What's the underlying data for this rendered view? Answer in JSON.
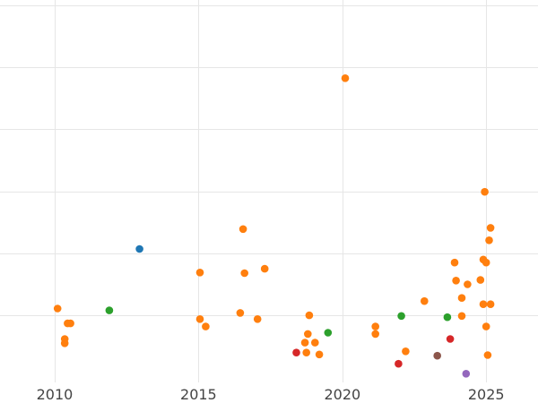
{
  "chart_data": {
    "type": "scatter",
    "title": "",
    "xlabel": "",
    "ylabel": "",
    "grid": true,
    "legend": "none",
    "x_ticks": [
      2010,
      2015,
      2020,
      2025
    ],
    "y_gridlines": [
      100,
      200,
      300,
      400,
      500,
      600
    ],
    "xlim": [
      2008.1,
      2026.8
    ],
    "ylim": [
      -8,
      608
    ],
    "series": [
      {
        "color": "#ff7f0e",
        "points": [
          {
            "x": 2010.1,
            "y": 111
          },
          {
            "x": 2010.45,
            "y": 87
          },
          {
            "x": 2010.55,
            "y": 87
          },
          {
            "x": 2010.35,
            "y": 62
          },
          {
            "x": 2010.35,
            "y": 55
          },
          {
            "x": 2015.05,
            "y": 169
          },
          {
            "x": 2015.05,
            "y": 94
          },
          {
            "x": 2015.25,
            "y": 82
          },
          {
            "x": 2016.55,
            "y": 239
          },
          {
            "x": 2016.6,
            "y": 168
          },
          {
            "x": 2016.45,
            "y": 104
          },
          {
            "x": 2017.05,
            "y": 94
          },
          {
            "x": 2017.3,
            "y": 175
          },
          {
            "x": 2018.7,
            "y": 56
          },
          {
            "x": 2018.75,
            "y": 40
          },
          {
            "x": 2018.8,
            "y": 70
          },
          {
            "x": 2018.85,
            "y": 100
          },
          {
            "x": 2019.05,
            "y": 56
          },
          {
            "x": 2019.2,
            "y": 37
          },
          {
            "x": 2020.1,
            "y": 482
          },
          {
            "x": 2021.15,
            "y": 82
          },
          {
            "x": 2021.15,
            "y": 70
          },
          {
            "x": 2022.2,
            "y": 42
          },
          {
            "x": 2022.85,
            "y": 123
          },
          {
            "x": 2023.9,
            "y": 185
          },
          {
            "x": 2023.95,
            "y": 156
          },
          {
            "x": 2024.15,
            "y": 128
          },
          {
            "x": 2024.35,
            "y": 150
          },
          {
            "x": 2024.15,
            "y": 99
          },
          {
            "x": 2024.8,
            "y": 157
          },
          {
            "x": 2024.9,
            "y": 190
          },
          {
            "x": 2025.0,
            "y": 185
          },
          {
            "x": 2024.95,
            "y": 299
          },
          {
            "x": 2025.1,
            "y": 221
          },
          {
            "x": 2025.15,
            "y": 241
          },
          {
            "x": 2024.9,
            "y": 118
          },
          {
            "x": 2025.15,
            "y": 118
          },
          {
            "x": 2025.0,
            "y": 82
          },
          {
            "x": 2025.05,
            "y": 36
          }
        ]
      },
      {
        "color": "#1f77b4",
        "points": [
          {
            "x": 2012.95,
            "y": 207
          }
        ]
      },
      {
        "color": "#2ca02c",
        "points": [
          {
            "x": 2011.9,
            "y": 108
          },
          {
            "x": 2019.5,
            "y": 72
          },
          {
            "x": 2022.05,
            "y": 99
          },
          {
            "x": 2023.65,
            "y": 97
          }
        ]
      },
      {
        "color": "#d62728",
        "points": [
          {
            "x": 2018.4,
            "y": 40
          },
          {
            "x": 2021.95,
            "y": 22
          },
          {
            "x": 2023.75,
            "y": 62
          }
        ]
      },
      {
        "color": "#8c564b",
        "points": [
          {
            "x": 2023.3,
            "y": 35
          }
        ]
      },
      {
        "color": "#9467bd",
        "points": [
          {
            "x": 2024.3,
            "y": 6
          }
        ]
      }
    ]
  }
}
